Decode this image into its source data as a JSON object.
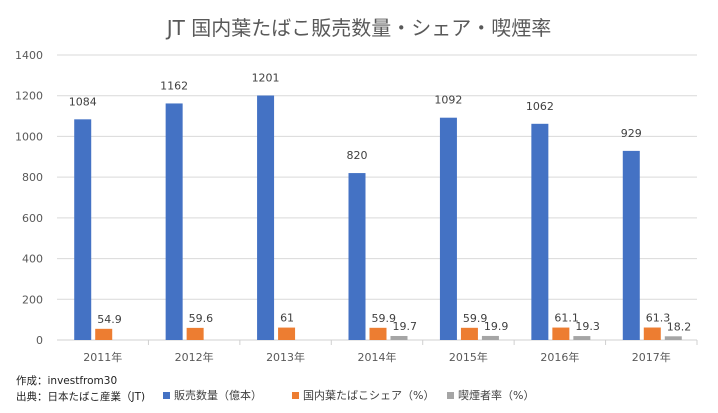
{
  "chart_data": {
    "type": "bar",
    "title": "JT 国内葉たばこ販売数量・シェア・喫煙率",
    "categories": [
      "2011年",
      "2012年",
      "2013年",
      "2014年",
      "2015年",
      "2016年",
      "2017年"
    ],
    "series": [
      {
        "name": "販売数量（億本）",
        "color": "#4472c4",
        "values": [
          1084,
          1162,
          1201,
          820,
          1092,
          1062,
          929
        ],
        "labels": [
          "1084",
          "1162",
          "1201",
          "820",
          "1092",
          "1062",
          "929"
        ]
      },
      {
        "name": "国内葉たばこシェア（%）",
        "color": "#ed7d31",
        "values": [
          54.9,
          59.6,
          61,
          59.9,
          59.9,
          61.1,
          61.3
        ],
        "labels": [
          "54.9",
          "59.6",
          "61",
          "59.9",
          "59.9",
          "61.1",
          "61.3"
        ]
      },
      {
        "name": "喫煙者率（%）",
        "color": "#a5a5a5",
        "values": [
          null,
          null,
          null,
          19.7,
          19.9,
          19.3,
          18.2
        ],
        "labels": [
          null,
          null,
          null,
          "19.7",
          "19.9",
          "19.3",
          "18.2"
        ]
      }
    ],
    "yticks": [
      "0",
      "200",
      "400",
      "600",
      "800",
      "1000",
      "1200",
      "1400"
    ],
    "ylim": [
      0,
      1400
    ],
    "grid": true,
    "legend": "bottom",
    "xlabel": "",
    "ylabel": ""
  },
  "notes": {
    "author": "作成：investfrom30",
    "source": "出典：日本たばこ産業（JT)"
  }
}
